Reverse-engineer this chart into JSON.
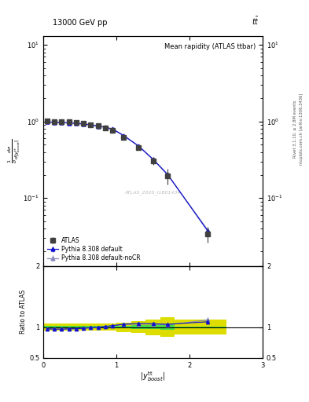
{
  "title_top": "13000 GeV pp",
  "title_right": "tt",
  "plot_title": "Mean rapidity (ATLAS ttbar)",
  "ylabel_ratio": "Ratio to ATLAS",
  "watermark": "ATLAS_2020_I1801434",
  "atlas_x": [
    0.05,
    0.15,
    0.25,
    0.35,
    0.45,
    0.55,
    0.65,
    0.75,
    0.85,
    0.95,
    1.1,
    1.3,
    1.5,
    1.7,
    2.25
  ],
  "atlas_y": [
    1.01,
    1.005,
    1.0,
    0.985,
    0.97,
    0.945,
    0.91,
    0.875,
    0.83,
    0.775,
    0.625,
    0.455,
    0.305,
    0.195,
    0.034
  ],
  "atlas_yerr": [
    0.018,
    0.018,
    0.018,
    0.018,
    0.018,
    0.018,
    0.018,
    0.018,
    0.018,
    0.018,
    0.022,
    0.028,
    0.035,
    0.045,
    0.008
  ],
  "py_default_x": [
    0.05,
    0.15,
    0.25,
    0.35,
    0.45,
    0.55,
    0.65,
    0.75,
    0.85,
    0.95,
    1.1,
    1.3,
    1.5,
    1.7,
    2.25
  ],
  "py_default_y": [
    0.985,
    0.978,
    0.968,
    0.958,
    0.946,
    0.928,
    0.902,
    0.872,
    0.84,
    0.795,
    0.655,
    0.482,
    0.322,
    0.204,
    0.037
  ],
  "py_default_yerr": [
    0.003,
    0.003,
    0.003,
    0.003,
    0.003,
    0.003,
    0.003,
    0.003,
    0.003,
    0.003,
    0.004,
    0.005,
    0.006,
    0.007,
    0.002
  ],
  "py_nocr_x": [
    0.05,
    0.15,
    0.25,
    0.35,
    0.45,
    0.55,
    0.65,
    0.75,
    0.85,
    0.95,
    1.1,
    1.3,
    1.5,
    1.7,
    2.25
  ],
  "py_nocr_y": [
    0.984,
    0.977,
    0.967,
    0.957,
    0.945,
    0.927,
    0.901,
    0.871,
    0.838,
    0.793,
    0.652,
    0.479,
    0.32,
    0.202,
    0.038
  ],
  "py_nocr_yerr": [
    0.003,
    0.003,
    0.003,
    0.003,
    0.003,
    0.003,
    0.003,
    0.003,
    0.003,
    0.003,
    0.004,
    0.005,
    0.006,
    0.007,
    0.002
  ],
  "bin_edges": [
    0.0,
    0.1,
    0.2,
    0.3,
    0.4,
    0.5,
    0.6,
    0.7,
    0.8,
    0.9,
    1.0,
    1.2,
    1.4,
    1.6,
    1.8,
    2.5
  ],
  "ratio_atlas_yerr_stat": [
    0.018,
    0.018,
    0.018,
    0.018,
    0.018,
    0.018,
    0.018,
    0.018,
    0.018,
    0.018,
    0.022,
    0.028,
    0.035,
    0.045,
    0.008
  ],
  "ratio_atlas_yerr_sys": [
    0.055,
    0.055,
    0.055,
    0.055,
    0.055,
    0.055,
    0.055,
    0.055,
    0.055,
    0.055,
    0.075,
    0.1,
    0.13,
    0.16,
    0.12
  ],
  "ratio_py_default_x": [
    0.05,
    0.15,
    0.25,
    0.35,
    0.45,
    0.55,
    0.65,
    0.75,
    0.85,
    0.95,
    1.1,
    1.3,
    1.5,
    1.7,
    2.25
  ],
  "ratio_py_default_y": [
    0.975,
    0.968,
    0.968,
    0.972,
    0.975,
    0.982,
    0.991,
    0.997,
    1.012,
    1.026,
    1.048,
    1.06,
    1.056,
    1.047,
    1.088
  ],
  "ratio_py_default_yerr": [
    0.005,
    0.005,
    0.005,
    0.005,
    0.005,
    0.005,
    0.005,
    0.005,
    0.006,
    0.006,
    0.007,
    0.009,
    0.012,
    0.018,
    0.04
  ],
  "ratio_py_nocr_x": [
    0.05,
    0.15,
    0.25,
    0.35,
    0.45,
    0.55,
    0.65,
    0.75,
    0.85,
    0.95,
    1.1,
    1.3,
    1.5,
    1.7,
    2.25
  ],
  "ratio_py_nocr_y": [
    0.974,
    0.967,
    0.967,
    0.971,
    0.974,
    0.981,
    0.99,
    0.994,
    1.01,
    1.022,
    1.043,
    1.052,
    1.049,
    1.037,
    1.118
  ],
  "ratio_py_nocr_yerr": [
    0.005,
    0.005,
    0.005,
    0.005,
    0.005,
    0.005,
    0.005,
    0.005,
    0.006,
    0.006,
    0.007,
    0.009,
    0.012,
    0.018,
    0.04
  ],
  "atlas_color": "#404040",
  "py_default_color": "#1111cc",
  "py_nocr_color": "#8888bb",
  "green_band_color": "#44dd44",
  "yellow_band_color": "#dddd00",
  "xlim": [
    0,
    3
  ],
  "ylim_main": [
    0.013,
    13
  ],
  "ylim_ratio": [
    0.5,
    2.0
  ],
  "yticks_ratio": [
    0.5,
    1.0,
    2.0
  ],
  "xticks": [
    0,
    1,
    2,
    3
  ]
}
